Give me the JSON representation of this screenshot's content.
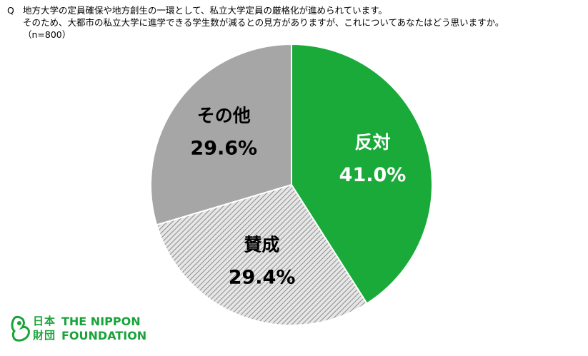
{
  "question": {
    "marker": "Q",
    "line1": "地方大学の定員確保や地方創生の一環として、私立大学定員の厳格化が進められています。",
    "line2": "そのため、大都市の私立大学に進学できる学生数が減るとの見方がありますが、これについてあなたはどう思いますか。",
    "line3": "（n=800）"
  },
  "chart_data": {
    "type": "pie",
    "title": "",
    "n": 800,
    "slices": [
      {
        "label": "反対",
        "value": 41.0,
        "value_label": "41.0%",
        "color": "#1aaa3a",
        "pattern": "solid",
        "text_color": "#ffffff"
      },
      {
        "label": "賛成",
        "value": 29.4,
        "value_label": "29.4%",
        "color": "#d9d9d9",
        "pattern": "hatched",
        "text_color": "#000000"
      },
      {
        "label": "その他",
        "value": 29.6,
        "value_label": "29.6%",
        "color": "#a6a6a6",
        "pattern": "solid",
        "text_color": "#000000"
      }
    ],
    "start_angle": "12 o'clock",
    "direction": "clockwise"
  },
  "logo": {
    "ja_line1": "日本",
    "ja_line2": "財団",
    "en_line1": "THE NIPPON",
    "en_line2": "FOUNDATION",
    "color": "#1aa33a"
  }
}
